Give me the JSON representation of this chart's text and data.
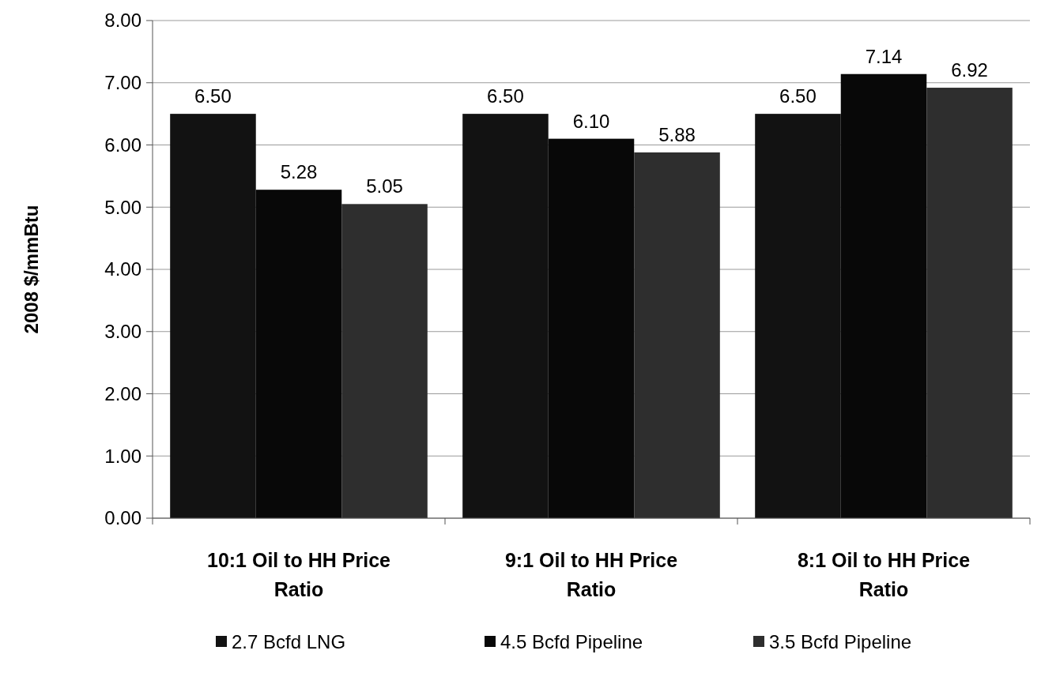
{
  "chart_data": {
    "type": "bar",
    "ylabel": "2008 $/mmBtu",
    "categories": [
      "10:1 Oil to HH Price Ratio",
      "9:1 Oil to HH Price Ratio",
      "8:1 Oil to HH Price Ratio"
    ],
    "series": [
      {
        "name": "2.7 Bcfd LNG",
        "color": "#121212",
        "values": [
          6.5,
          6.5,
          6.5
        ]
      },
      {
        "name": "4.5 Bcfd Pipeline",
        "color": "#080808",
        "values": [
          5.28,
          6.1,
          7.14
        ]
      },
      {
        "name": "3.5 Bcfd Pipeline",
        "color": "#2e2e2e",
        "values": [
          5.05,
          5.88,
          6.92
        ]
      }
    ],
    "ylim": [
      0,
      8
    ],
    "yticks": [
      {
        "value": 0,
        "label": "0.00"
      },
      {
        "value": 1,
        "label": "1.00"
      },
      {
        "value": 2,
        "label": "2.00"
      },
      {
        "value": 3,
        "label": "3.00"
      },
      {
        "value": 4,
        "label": "4.00"
      },
      {
        "value": 5,
        "label": "5.00"
      },
      {
        "value": 6,
        "label": "6.00"
      },
      {
        "value": 7,
        "label": "7.00"
      },
      {
        "value": 8,
        "label": "8.00"
      }
    ],
    "value_labels": [
      [
        "6.50",
        "6.50",
        "6.50"
      ],
      [
        "5.28",
        "6.10",
        "7.14"
      ],
      [
        "5.05",
        "5.88",
        "6.92"
      ]
    ],
    "grid": "y",
    "legend": "bottom"
  }
}
